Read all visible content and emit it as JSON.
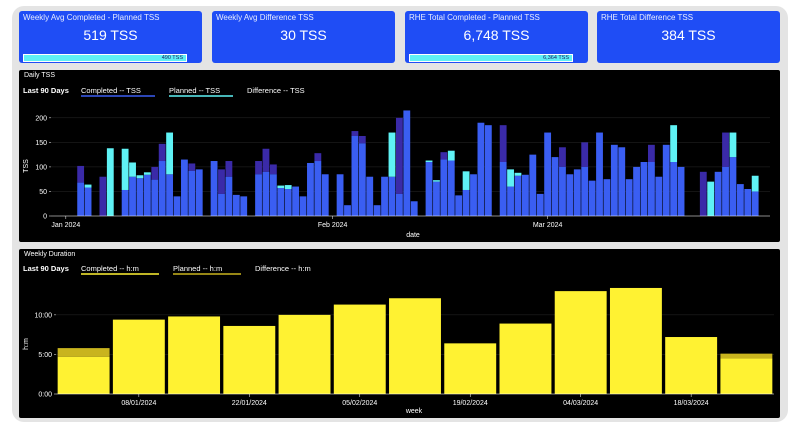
{
  "kpis": [
    {
      "title": "Weekly Avg Completed - Planned TSS",
      "value": "519 TSS",
      "bar_label": "490 TSS",
      "bar_fraction": 0.94
    },
    {
      "title": "Weekly Avg Difference TSS",
      "value": "30 TSS"
    },
    {
      "title": "RHE Total Completed - Planned TSS",
      "value": "6,748 TSS",
      "bar_label": "6,364 TSS",
      "bar_fraction": 0.94
    },
    {
      "title": "RHE Total Difference TSS",
      "value": "384 TSS"
    }
  ],
  "colors": {
    "kpi_blue": "#1f4df5",
    "completed_blue": "#3a5ef2",
    "planned_dark": "#3a2aa8",
    "difference_cyan": "#5ff2f5",
    "weekly_yellow": "#fff232",
    "weekly_planned": "#c9b41e"
  },
  "daily": {
    "panel_title": "Daily TSS",
    "legend": {
      "period": "Last 90 Days",
      "completed": "Completed -- TSS",
      "planned": "Planned -- TSS",
      "difference": "Difference -- TSS"
    },
    "chart_data": {
      "type": "bar",
      "xlabel": "date",
      "ylabel": "TSS",
      "ylim": [
        0,
        220
      ],
      "yticks": [
        0,
        50,
        100,
        150,
        200
      ],
      "xticks": [
        {
          "day": 2,
          "label": "Jan 2024"
        },
        {
          "day": 38,
          "label": "Feb 2024"
        },
        {
          "day": 67,
          "label": "Mar 2024"
        }
      ],
      "series_names": [
        "Completed",
        "Planned",
        "Difference"
      ],
      "days": [
        {
          "day": 4,
          "c": 68,
          "p": 102,
          "d": 0
        },
        {
          "day": 5,
          "c": 58,
          "p": 58,
          "d": 6
        },
        {
          "day": 7,
          "c": 0,
          "p": 80,
          "d": 0
        },
        {
          "day": 8,
          "c": 0,
          "p": 0,
          "d": 138
        },
        {
          "day": 10,
          "c": 53,
          "p": 53,
          "d": 84
        },
        {
          "day": 11,
          "c": 80,
          "p": 80,
          "d": 29
        },
        {
          "day": 12,
          "c": 77,
          "p": 77,
          "d": 6
        },
        {
          "day": 13,
          "c": 84,
          "p": 84,
          "d": 5
        },
        {
          "day": 14,
          "c": 74,
          "p": 100,
          "d": 0
        },
        {
          "day": 15,
          "c": 112,
          "p": 147,
          "d": 0
        },
        {
          "day": 16,
          "c": 85,
          "p": 85,
          "d": 85
        },
        {
          "day": 17,
          "c": 40,
          "p": 40,
          "d": 0
        },
        {
          "day": 18,
          "c": 115,
          "p": 115,
          "d": 0
        },
        {
          "day": 19,
          "c": 92,
          "p": 107,
          "d": 0
        },
        {
          "day": 20,
          "c": 95,
          "p": 95,
          "d": 0
        },
        {
          "day": 22,
          "c": 112,
          "p": 112,
          "d": 0
        },
        {
          "day": 23,
          "c": 45,
          "p": 95,
          "d": 0
        },
        {
          "day": 24,
          "c": 80,
          "p": 112,
          "d": 0
        },
        {
          "day": 25,
          "c": 43,
          "p": 43,
          "d": 0
        },
        {
          "day": 26,
          "c": 40,
          "p": 40,
          "d": 0
        },
        {
          "day": 28,
          "c": 85,
          "p": 112,
          "d": 0
        },
        {
          "day": 29,
          "c": 90,
          "p": 137,
          "d": 0
        },
        {
          "day": 30,
          "c": 85,
          "p": 105,
          "d": 0
        },
        {
          "day": 31,
          "c": 57,
          "p": 57,
          "d": 5
        },
        {
          "day": 32,
          "c": 55,
          "p": 55,
          "d": 8
        },
        {
          "day": 33,
          "c": 60,
          "p": 60,
          "d": 0
        },
        {
          "day": 34,
          "c": 40,
          "p": 40,
          "d": 0
        },
        {
          "day": 35,
          "c": 108,
          "p": 108,
          "d": 0
        },
        {
          "day": 36,
          "c": 112,
          "p": 128,
          "d": 0
        },
        {
          "day": 37,
          "c": 85,
          "p": 85,
          "d": 0
        },
        {
          "day": 39,
          "c": 85,
          "p": 85,
          "d": 0
        },
        {
          "day": 40,
          "c": 22,
          "p": 22,
          "d": 0
        },
        {
          "day": 41,
          "c": 163,
          "p": 173,
          "d": 0
        },
        {
          "day": 42,
          "c": 148,
          "p": 163,
          "d": 0
        },
        {
          "day": 43,
          "c": 80,
          "p": 80,
          "d": 0
        },
        {
          "day": 44,
          "c": 22,
          "p": 22,
          "d": 0
        },
        {
          "day": 45,
          "c": 80,
          "p": 80,
          "d": 0
        },
        {
          "day": 46,
          "c": 80,
          "p": 80,
          "d": 90
        },
        {
          "day": 47,
          "c": 45,
          "p": 200,
          "d": 0
        },
        {
          "day": 48,
          "c": 215,
          "p": 215,
          "d": 0
        },
        {
          "day": 49,
          "c": 30,
          "p": 30,
          "d": 0
        },
        {
          "day": 51,
          "c": 110,
          "p": 110,
          "d": 3
        },
        {
          "day": 52,
          "c": 70,
          "p": 70,
          "d": 3
        },
        {
          "day": 53,
          "c": 115,
          "p": 130,
          "d": 0
        },
        {
          "day": 54,
          "c": 113,
          "p": 113,
          "d": 20
        },
        {
          "day": 55,
          "c": 42,
          "p": 42,
          "d": 0
        },
        {
          "day": 56,
          "c": 53,
          "p": 53,
          "d": 38
        },
        {
          "day": 57,
          "c": 85,
          "p": 85,
          "d": 0
        },
        {
          "day": 58,
          "c": 190,
          "p": 190,
          "d": 0
        },
        {
          "day": 59,
          "c": 185,
          "p": 185,
          "d": 0
        },
        {
          "day": 61,
          "c": 110,
          "p": 185,
          "d": 0
        },
        {
          "day": 62,
          "c": 60,
          "p": 60,
          "d": 35
        },
        {
          "day": 63,
          "c": 82,
          "p": 82,
          "d": 6
        },
        {
          "day": 64,
          "c": 84,
          "p": 84,
          "d": 0
        },
        {
          "day": 65,
          "c": 125,
          "p": 125,
          "d": 0
        },
        {
          "day": 66,
          "c": 45,
          "p": 45,
          "d": 0
        },
        {
          "day": 67,
          "c": 170,
          "p": 170,
          "d": 0
        },
        {
          "day": 68,
          "c": 120,
          "p": 120,
          "d": 0
        },
        {
          "day": 69,
          "c": 100,
          "p": 140,
          "d": 0
        },
        {
          "day": 70,
          "c": 85,
          "p": 85,
          "d": 0
        },
        {
          "day": 71,
          "c": 95,
          "p": 95,
          "d": 0
        },
        {
          "day": 72,
          "c": 100,
          "p": 150,
          "d": 0
        },
        {
          "day": 73,
          "c": 72,
          "p": 72,
          "d": 0
        },
        {
          "day": 74,
          "c": 170,
          "p": 170,
          "d": 0
        },
        {
          "day": 75,
          "c": 75,
          "p": 75,
          "d": 0
        },
        {
          "day": 76,
          "c": 145,
          "p": 145,
          "d": 0
        },
        {
          "day": 77,
          "c": 140,
          "p": 140,
          "d": 0
        },
        {
          "day": 78,
          "c": 75,
          "p": 75,
          "d": 0
        },
        {
          "day": 79,
          "c": 100,
          "p": 100,
          "d": 0
        },
        {
          "day": 80,
          "c": 110,
          "p": 110,
          "d": 0
        },
        {
          "day": 81,
          "c": 110,
          "p": 145,
          "d": 0
        },
        {
          "day": 82,
          "c": 80,
          "p": 80,
          "d": 0
        },
        {
          "day": 83,
          "c": 145,
          "p": 145,
          "d": 0
        },
        {
          "day": 84,
          "c": 110,
          "p": 110,
          "d": 75
        },
        {
          "day": 85,
          "c": 100,
          "p": 100,
          "d": 0
        },
        {
          "day": 88,
          "c": 0,
          "p": 90,
          "d": 0
        },
        {
          "day": 89,
          "c": 0,
          "p": 0,
          "d": 70
        },
        {
          "day": 90,
          "c": 90,
          "p": 90,
          "d": 0
        },
        {
          "day": 91,
          "c": 100,
          "p": 170,
          "d": 0
        },
        {
          "day": 92,
          "c": 120,
          "p": 120,
          "d": 50
        },
        {
          "day": 93,
          "c": 65,
          "p": 65,
          "d": 0
        },
        {
          "day": 94,
          "c": 55,
          "p": 55,
          "d": 0
        },
        {
          "day": 95,
          "c": 50,
          "p": 50,
          "d": 32
        }
      ]
    }
  },
  "weekly": {
    "panel_title": "Weekly Duration",
    "legend": {
      "period": "Last 90 Days",
      "completed": "Completed -- h:m",
      "planned": "Planned -- h:m",
      "difference": "Difference -- h:m"
    },
    "chart_data": {
      "type": "bar",
      "xlabel": "week",
      "ylabel": "h:m",
      "ylim_hours": [
        0,
        13
      ],
      "yticks": [
        {
          "value": 0,
          "label": "0:00"
        },
        {
          "value": 5,
          "label": "5:00"
        },
        {
          "value": 10,
          "label": "10:00"
        }
      ],
      "series_names": [
        "Completed",
        "Planned"
      ],
      "weeks": [
        {
          "label": "",
          "completed": 4.7,
          "planned": 5.8
        },
        {
          "label": "08/01/2024",
          "completed": 9.4,
          "planned": 9.4
        },
        {
          "label": "",
          "completed": 9.8,
          "planned": 9.8
        },
        {
          "label": "22/01/2024",
          "completed": 8.6,
          "planned": 8.6
        },
        {
          "label": "",
          "completed": 10.0,
          "planned": 10.0
        },
        {
          "label": "05/02/2024",
          "completed": 11.3,
          "planned": 11.3
        },
        {
          "label": "",
          "completed": 12.1,
          "planned": 12.1
        },
        {
          "label": "19/02/2024",
          "completed": 6.4,
          "planned": 6.4
        },
        {
          "label": "",
          "completed": 8.9,
          "planned": 8.9
        },
        {
          "label": "04/03/2024",
          "completed": 13.0,
          "planned": 13.0
        },
        {
          "label": "",
          "completed": 13.4,
          "planned": 13.4
        },
        {
          "label": "18/03/2024",
          "completed": 7.2,
          "planned": 7.2
        },
        {
          "label": "",
          "completed": 4.5,
          "planned": 5.1
        }
      ]
    }
  }
}
